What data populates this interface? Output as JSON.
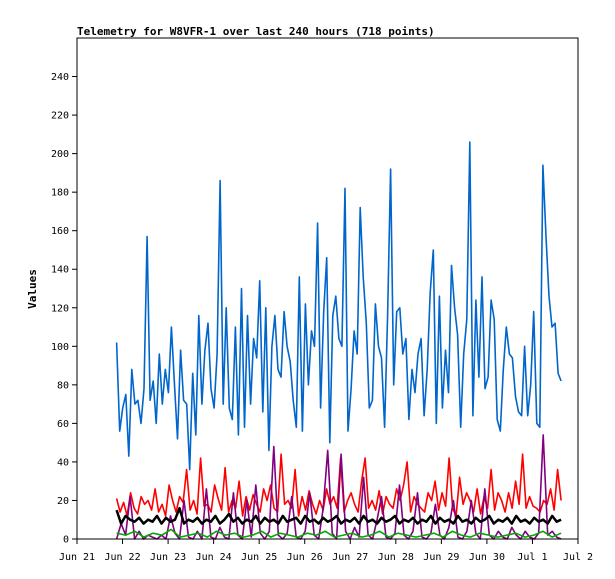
{
  "chart_data": {
    "type": "line",
    "title": "Telemetry for W8VFR-1 over last 240 hours (718 points)",
    "xlabel": "",
    "ylabel": "Values",
    "ylim": [
      0,
      260
    ],
    "yticks": [
      0,
      20,
      40,
      60,
      80,
      100,
      120,
      140,
      160,
      180,
      200,
      220,
      240
    ],
    "xlim": [
      0,
      11
    ],
    "x_ticks": [
      {
        "x": 0,
        "label": "Jun 21"
      },
      {
        "x": 1,
        "label": "Jun 22"
      },
      {
        "x": 2,
        "label": "Jun 23"
      },
      {
        "x": 3,
        "label": "Jun 24"
      },
      {
        "x": 4,
        "label": "Jun 25"
      },
      {
        "x": 5,
        "label": "Jun 26"
      },
      {
        "x": 6,
        "label": "Jun 27"
      },
      {
        "x": 7,
        "label": "Jun 28"
      },
      {
        "x": 8,
        "label": "Jun 29"
      },
      {
        "x": 9,
        "label": "Jun 30"
      },
      {
        "x": 10,
        "label": "Jul 1"
      },
      {
        "x": 11,
        "label": "Jul 2"
      }
    ],
    "grid": false,
    "series": [
      {
        "color": "#0066cc",
        "x_start": 0.87,
        "x_end": 10.63,
        "values": [
          102,
          56,
          68,
          75,
          43,
          88,
          70,
          72,
          60,
          78,
          157,
          72,
          82,
          60,
          96,
          70,
          88,
          76,
          110,
          80,
          52,
          98,
          72,
          70,
          36,
          86,
          54,
          116,
          70,
          98,
          112,
          78,
          68,
          96,
          186,
          70,
          120,
          68,
          62,
          110,
          54,
          130,
          58,
          116,
          70,
          104,
          94,
          134,
          66,
          120,
          46,
          100,
          116,
          88,
          84,
          118,
          100,
          92,
          72,
          58,
          136,
          56,
          122,
          80,
          108,
          100,
          164,
          68,
          118,
          146,
          50,
          116,
          126,
          104,
          100,
          182,
          56,
          78,
          108,
          96,
          172,
          136,
          112,
          68,
          72,
          122,
          100,
          94,
          58,
          116,
          192,
          80,
          118,
          120,
          96,
          104,
          62,
          88,
          76,
          96,
          104,
          64,
          88,
          128,
          150,
          60,
          126,
          68,
          98,
          76,
          142,
          120,
          106,
          58,
          96,
          114,
          206,
          64,
          124,
          84,
          136,
          78,
          84,
          124,
          114,
          62,
          56,
          88,
          110,
          96,
          94,
          74,
          66,
          64,
          100,
          64,
          80,
          118,
          60,
          58,
          194,
          158,
          126,
          110,
          112,
          86,
          82
        ]
      },
      {
        "color": "#ff0000",
        "x_start": 0.87,
        "x_end": 10.63,
        "values": [
          21,
          14,
          19,
          12,
          24,
          16,
          13,
          22,
          18,
          20,
          15,
          26,
          14,
          18,
          12,
          28,
          20,
          14,
          22,
          19,
          36,
          15,
          20,
          13,
          42,
          17,
          18,
          14,
          28,
          21,
          15,
          37,
          14,
          20,
          16,
          30,
          12,
          22,
          15,
          23,
          18,
          14,
          26,
          20,
          28,
          16,
          14,
          44,
          18,
          20,
          16,
          36,
          12,
          22,
          15,
          25,
          18,
          13,
          20,
          15,
          26,
          18,
          22,
          16,
          42,
          14,
          20,
          24,
          18,
          14,
          30,
          42,
          16,
          20,
          15,
          25,
          13,
          22,
          18,
          16,
          26,
          20,
          28,
          40,
          14,
          22,
          18,
          16,
          14,
          24,
          20,
          30,
          15,
          24,
          17,
          42,
          16,
          12,
          32,
          18,
          24,
          20,
          14,
          26,
          13,
          22,
          16,
          36,
          15,
          24,
          20,
          14,
          24,
          16,
          30,
          18,
          44,
          16,
          22,
          17,
          16,
          14,
          20,
          18,
          26,
          15,
          36,
          20
        ]
      },
      {
        "color": "#000000",
        "x_start": 0.87,
        "x_end": 10.63,
        "values": [
          15,
          8,
          12,
          10,
          9,
          11,
          8,
          10,
          9,
          12,
          8,
          11,
          9,
          10,
          16,
          8,
          10,
          9,
          11,
          8,
          10,
          9,
          12,
          8,
          10,
          13,
          9,
          11,
          8,
          10,
          9,
          12,
          8,
          11,
          9,
          10,
          8,
          12,
          9,
          10,
          11,
          8,
          12,
          9,
          10,
          8,
          11,
          9,
          10,
          12,
          8,
          10,
          9,
          11,
          8,
          12,
          9,
          10,
          8,
          11,
          9,
          10,
          12,
          8,
          10,
          9,
          11,
          8,
          10,
          9,
          12,
          8,
          11,
          9,
          10,
          8,
          12,
          9,
          10,
          8,
          11,
          9,
          10,
          12,
          8,
          10,
          9,
          11,
          8,
          12,
          9,
          10,
          8,
          11,
          9,
          10,
          8,
          12,
          9,
          10
        ]
      },
      {
        "color": "#800080",
        "x_start": 0.87,
        "x_end": 10.63,
        "values": [
          0,
          8,
          2,
          22,
          0,
          4,
          0,
          2,
          1,
          0,
          2,
          0,
          12,
          3,
          0,
          20,
          1,
          0,
          4,
          0,
          26,
          1,
          0,
          6,
          1,
          0,
          24,
          2,
          0,
          20,
          1,
          28,
          3,
          0,
          4,
          48,
          2,
          0,
          3,
          22,
          1,
          0,
          4,
          24,
          2,
          0,
          16,
          46,
          3,
          0,
          44,
          4,
          0,
          6,
          1,
          32,
          2,
          0,
          10,
          22,
          1,
          0,
          3,
          28,
          2,
          0,
          4,
          24,
          1,
          0,
          3,
          18,
          2,
          0,
          6,
          20,
          1,
          0,
          4,
          20,
          3,
          0,
          26,
          2,
          0,
          4,
          1,
          0,
          6,
          2,
          0,
          4,
          1,
          0,
          3,
          54,
          2,
          4,
          1,
          0
        ]
      },
      {
        "color": "#00aa00",
        "x_start": 0.87,
        "x_end": 10.63,
        "values": [
          3,
          2,
          4,
          1,
          3,
          2,
          5,
          1,
          2,
          3,
          1,
          4,
          2,
          3,
          1,
          2,
          4,
          1,
          3,
          2,
          1,
          3,
          2,
          4,
          1,
          2,
          3,
          1,
          2,
          4,
          1,
          3,
          2,
          1,
          2,
          3,
          1,
          4,
          2,
          1,
          3,
          2,
          1,
          2,
          3,
          1,
          2,
          4,
          1,
          3
        ]
      }
    ]
  }
}
